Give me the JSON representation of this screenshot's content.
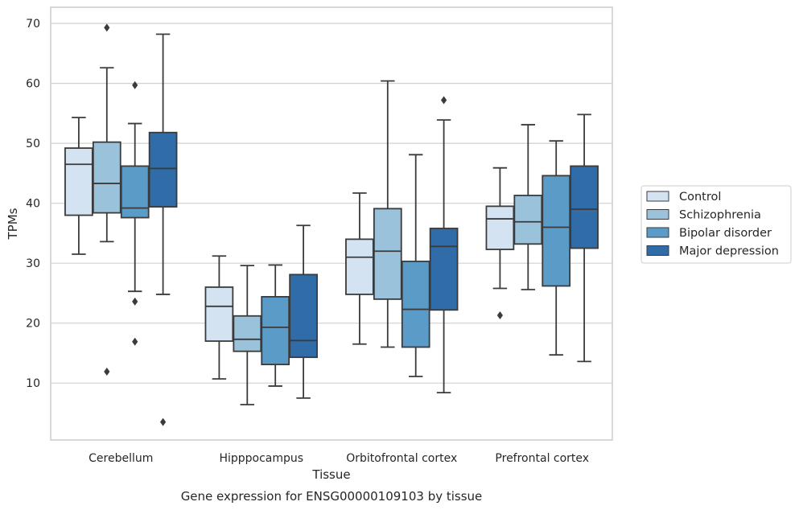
{
  "chart_data": {
    "type": "boxplot",
    "title": "",
    "caption": "Gene expression for ENSG00000109103 by tissue",
    "xlabel": "Tissue",
    "ylabel": "TPMs",
    "ylim": [
      0.5,
      72.7
    ],
    "yticks": [
      10,
      20,
      30,
      40,
      50,
      60,
      70
    ],
    "grid": "horizontal",
    "legend_position": "right",
    "categories": [
      "Cerebellum",
      "Hipppocampus",
      "Orbitofrontal cortex",
      "Prefrontal cortex"
    ],
    "series": [
      {
        "name": "Control",
        "color": "#d4e3f2",
        "boxes": [
          {
            "whislo": 31.5,
            "q1": 38.0,
            "med": 46.5,
            "q3": 49.2,
            "whishi": 54.3,
            "fliers": []
          },
          {
            "whislo": 10.7,
            "q1": 17.0,
            "med": 22.8,
            "q3": 26.0,
            "whishi": 31.2,
            "fliers": []
          },
          {
            "whislo": 16.5,
            "q1": 24.8,
            "med": 31.0,
            "q3": 34.0,
            "whishi": 41.7,
            "fliers": []
          },
          {
            "whislo": 25.8,
            "q1": 32.3,
            "med": 37.4,
            "q3": 39.5,
            "whishi": 45.9,
            "fliers": [
              21.3
            ]
          }
        ]
      },
      {
        "name": "Schizophrenia",
        "color": "#9bc2db",
        "boxes": [
          {
            "whislo": 33.6,
            "q1": 38.4,
            "med": 43.3,
            "q3": 50.2,
            "whishi": 62.6,
            "fliers": [
              69.3,
              11.9
            ]
          },
          {
            "whislo": 6.4,
            "q1": 15.3,
            "med": 17.3,
            "q3": 21.2,
            "whishi": 29.6,
            "fliers": []
          },
          {
            "whislo": 16.0,
            "q1": 24.0,
            "med": 32.0,
            "q3": 39.1,
            "whishi": 60.4,
            "fliers": []
          },
          {
            "whislo": 25.6,
            "q1": 33.2,
            "med": 36.9,
            "q3": 41.3,
            "whishi": 53.1,
            "fliers": []
          }
        ]
      },
      {
        "name": "Bipolar disorder",
        "color": "#5b9bc8",
        "boxes": [
          {
            "whislo": 25.3,
            "q1": 37.6,
            "med": 39.2,
            "q3": 46.2,
            "whishi": 53.3,
            "fliers": [
              59.7,
              23.6,
              16.9
            ]
          },
          {
            "whislo": 9.5,
            "q1": 13.1,
            "med": 19.3,
            "q3": 24.4,
            "whishi": 29.7,
            "fliers": []
          },
          {
            "whislo": 11.1,
            "q1": 16.0,
            "med": 22.3,
            "q3": 30.3,
            "whishi": 48.1,
            "fliers": []
          },
          {
            "whislo": 14.7,
            "q1": 26.2,
            "med": 36.0,
            "q3": 44.6,
            "whishi": 50.4,
            "fliers": []
          }
        ]
      },
      {
        "name": "Major depression",
        "color": "#2f6ca8",
        "boxes": [
          {
            "whislo": 24.8,
            "q1": 39.4,
            "med": 45.8,
            "q3": 51.8,
            "whishi": 68.2,
            "fliers": [
              3.5
            ]
          },
          {
            "whislo": 7.5,
            "q1": 14.3,
            "med": 17.1,
            "q3": 28.1,
            "whishi": 36.3,
            "fliers": []
          },
          {
            "whislo": 8.4,
            "q1": 22.2,
            "med": 32.8,
            "q3": 35.8,
            "whishi": 53.9,
            "fliers": [
              57.2
            ]
          },
          {
            "whislo": 13.6,
            "q1": 32.5,
            "med": 39.0,
            "q3": 46.2,
            "whishi": 54.8,
            "fliers": []
          }
        ]
      }
    ]
  }
}
